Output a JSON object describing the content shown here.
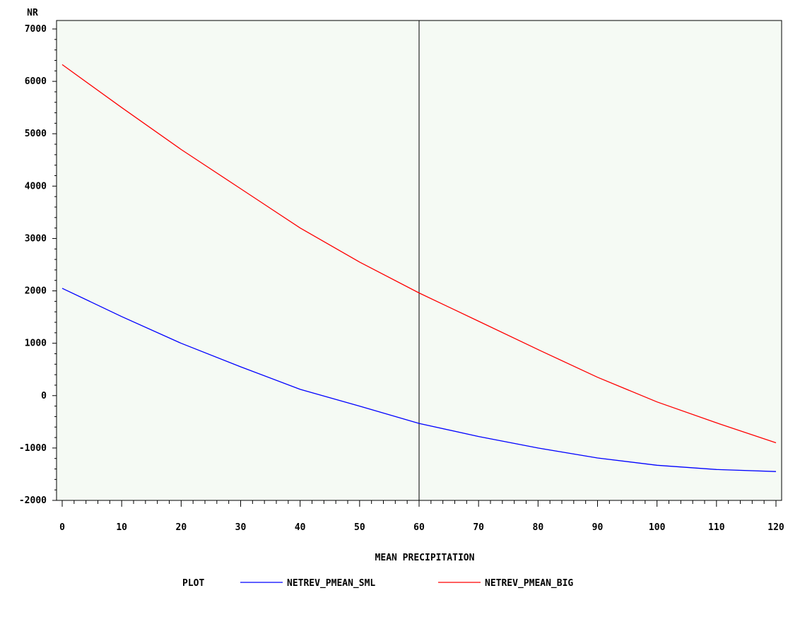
{
  "chart_data": {
    "type": "line",
    "ylabel": "NR",
    "xlabel": "MEAN PRECIPITATION",
    "xlim": [
      0,
      120
    ],
    "ylim": [
      -2000,
      7000
    ],
    "x_ticks": [
      0,
      10,
      20,
      30,
      40,
      50,
      60,
      70,
      80,
      90,
      100,
      110,
      120
    ],
    "y_ticks": [
      -2000,
      -1000,
      0,
      1000,
      2000,
      3000,
      4000,
      5000,
      6000,
      7000
    ],
    "x_tick_labels": [
      "0",
      "10",
      "20",
      "30",
      "40",
      "50",
      "60",
      "70",
      "80",
      "90",
      "100",
      "110",
      "120"
    ],
    "y_tick_labels": [
      "-2000",
      "-1000",
      "0",
      "1000",
      "2000",
      "3000",
      "4000",
      "5000",
      "6000",
      "7000"
    ],
    "reference_line_x": 60,
    "grid": false,
    "legend_position": "bottom",
    "legend_title": "PLOT",
    "x": [
      0,
      10,
      20,
      30,
      40,
      50,
      60,
      70,
      80,
      90,
      100,
      110,
      120
    ],
    "series": [
      {
        "name": "NETREV_PMEAN_SML",
        "color": "#0000ff",
        "values": [
          2050,
          1510,
          1000,
          550,
          120,
          -200,
          -530,
          -780,
          -1000,
          -1190,
          -1330,
          -1410,
          -1450
        ]
      },
      {
        "name": "NETREV_PMEAN_BIG",
        "color": "#ff0000",
        "values": [
          6320,
          5500,
          4700,
          3950,
          3200,
          2550,
          1960,
          1420,
          880,
          350,
          -120,
          -520,
          -900
        ]
      }
    ],
    "colors": {
      "background": "#f5faf4",
      "axis": "#000000"
    }
  }
}
